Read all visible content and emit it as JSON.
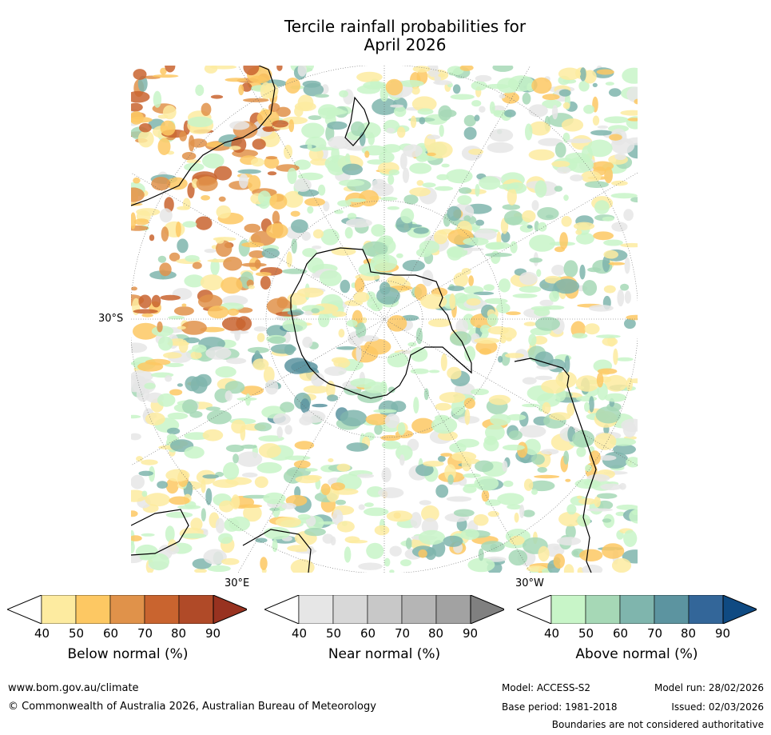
{
  "title": {
    "line1": "Tercile rainfall probabilities for",
    "line2": "April 2026"
  },
  "map": {
    "lat_label": "30°S",
    "lon_label_left": "30°E",
    "lon_label_right": "30°W"
  },
  "colorbars": [
    {
      "title": "Below normal (%)",
      "ticks": [
        "40",
        "50",
        "60",
        "70",
        "80",
        "90"
      ],
      "colors": [
        "#ffffff",
        "#fdeba0",
        "#fdc863",
        "#e0924a",
        "#c9642f",
        "#b04a28",
        "#983220"
      ]
    },
    {
      "title": "Near normal (%)",
      "ticks": [
        "40",
        "50",
        "60",
        "70",
        "80",
        "90"
      ],
      "colors": [
        "#ffffff",
        "#e6e6e6",
        "#d8d8d8",
        "#c8c8c8",
        "#b5b5b5",
        "#a2a2a2",
        "#808080"
      ]
    },
    {
      "title": "Above normal (%)",
      "ticks": [
        "40",
        "50",
        "60",
        "70",
        "80",
        "90"
      ],
      "colors": [
        "#ffffff",
        "#c8f5c8",
        "#a6d8b6",
        "#7fb5ad",
        "#5c94a0",
        "#336699",
        "#0f4a82"
      ]
    }
  ],
  "footer": {
    "website": "www.bom.gov.au/climate",
    "copyright": "© Commonwealth of Australia 2026, Australian Bureau of Meteorology",
    "model": "Model: ACCESS-S2",
    "model_run": "Model run: 28/02/2026",
    "base_period": "Base period: 1981-2018",
    "issued": "Issued: 02/03/2026",
    "boundaries": "Boundaries are not considered authoritative"
  }
}
